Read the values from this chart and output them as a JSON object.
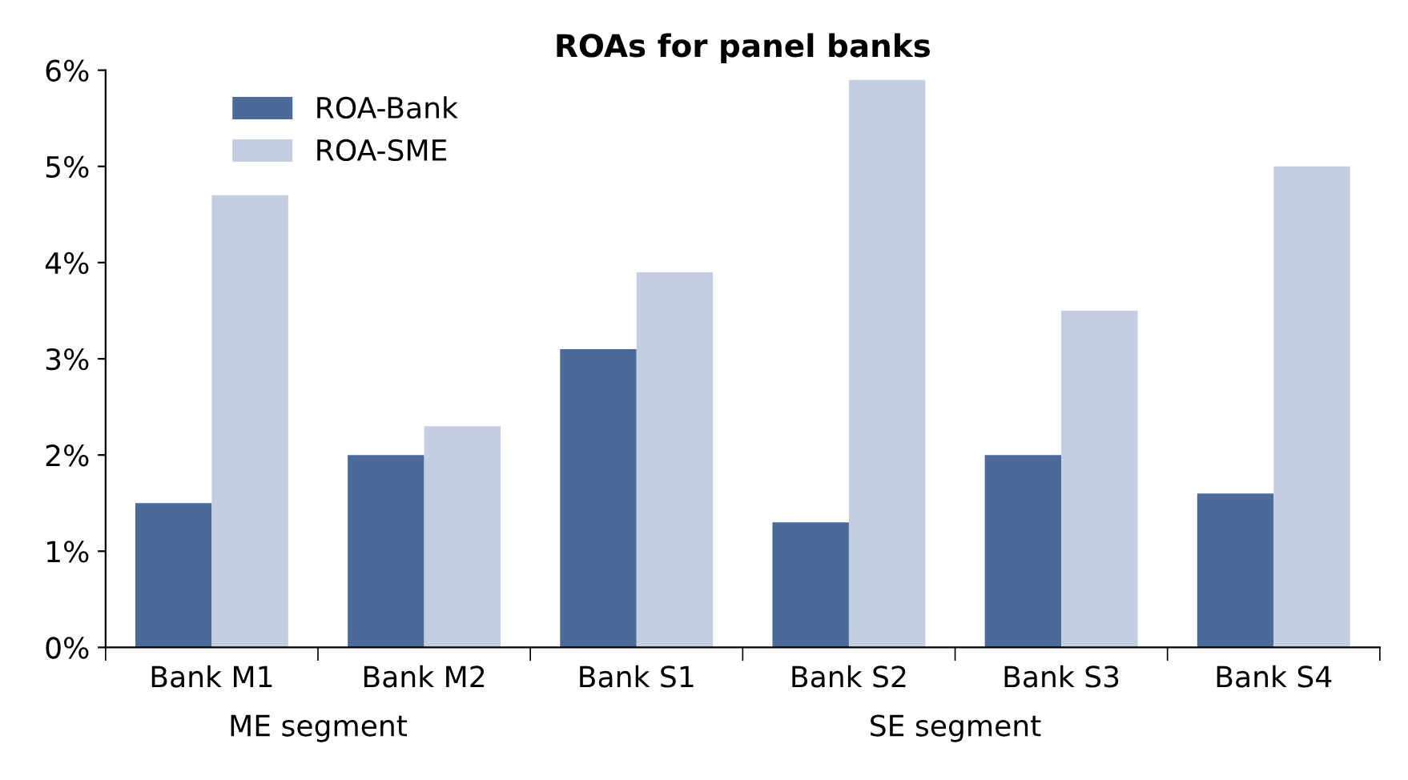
{
  "chart_data": {
    "type": "bar",
    "title": "ROAs for panel banks",
    "categories": [
      "Bank M1",
      "Bank M2",
      "Bank S1",
      "Bank S2",
      "Bank S3",
      "Bank S4"
    ],
    "series": [
      {
        "name": "ROA-Bank",
        "color": "#4a6b9a",
        "values": [
          1.5,
          2.0,
          3.1,
          1.3,
          2.0,
          1.6
        ]
      },
      {
        "name": "ROA-SME",
        "color": "#c3cee0",
        "values": [
          4.7,
          2.3,
          3.9,
          5.9,
          3.5,
          5.0
        ]
      }
    ],
    "ylim": [
      0,
      6
    ],
    "yticks": [
      {
        "value": 0,
        "label": "0%"
      },
      {
        "value": 1,
        "label": "1%"
      },
      {
        "value": 2,
        "label": "2%"
      },
      {
        "value": 3,
        "label": "3%"
      },
      {
        "value": 4,
        "label": "4%"
      },
      {
        "value": 5,
        "label": "5%"
      },
      {
        "value": 6,
        "label": "6%"
      }
    ],
    "annotations": [
      "ME segment",
      "SE segment"
    ],
    "legend": "top left",
    "grid": false
  }
}
